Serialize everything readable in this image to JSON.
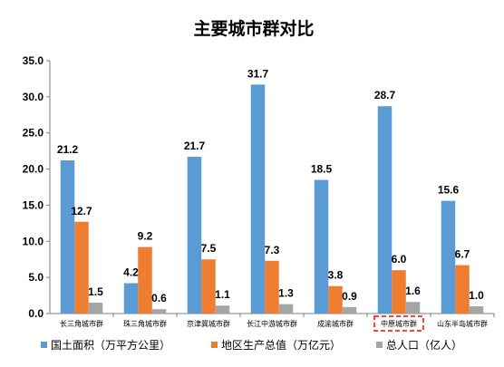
{
  "chart_data": {
    "type": "bar",
    "title": "主要城市群对比",
    "categories": [
      "长三角城市群",
      "珠三角城市群",
      "京津冀城市群",
      "长江中游城市群",
      "成渝城市群",
      "中原城市群",
      "山东半岛城市群"
    ],
    "highlight_category": "中原城市群",
    "ylim": [
      0,
      35
    ],
    "yticks": [
      "0.0",
      "5.0",
      "10.0",
      "15.0",
      "20.0",
      "25.0",
      "30.0",
      "35.0"
    ],
    "grid": false,
    "legend_position": "bottom",
    "series": [
      {
        "name": "国土面积（万平方公里）",
        "color": "#5B9BD5",
        "values": [
          21.2,
          4.2,
          21.7,
          31.7,
          18.5,
          28.7,
          15.6
        ],
        "labels": [
          "21.2",
          "4.2",
          "21.7",
          "31.7",
          "18.5",
          "28.7",
          "15.6"
        ]
      },
      {
        "name": "地区生产总值（万亿元）",
        "color": "#ED7D31",
        "values": [
          12.7,
          9.2,
          7.5,
          7.3,
          3.8,
          6.0,
          6.7
        ],
        "labels": [
          "12.7",
          "9.2",
          "7.5",
          "7.3",
          "3.8",
          "6.0",
          "6.7"
        ]
      },
      {
        "name": "总人口（亿人）",
        "color": "#A5A5A5",
        "values": [
          1.5,
          0.6,
          1.1,
          1.3,
          0.9,
          1.6,
          1.0
        ],
        "labels": [
          "1.5",
          "0.6",
          "1.1",
          "1.3",
          "0.9",
          "1.6",
          "1.0"
        ]
      }
    ]
  }
}
